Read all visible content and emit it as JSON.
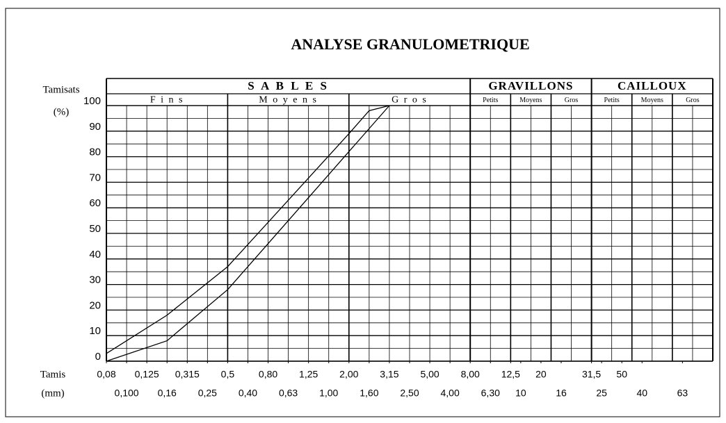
{
  "chart_data": {
    "type": "line",
    "title": "ANALYSE GRANULOMETRIQUE",
    "y_label": [
      "Tamisats",
      "(%)"
    ],
    "x_label": [
      "Tamis",
      "(mm)"
    ],
    "groups": [
      {
        "label": "S A B L E S",
        "subs": [
          "F i n s",
          "M o y e n s",
          "G r o s"
        ]
      },
      {
        "label": "GRAVILLONS",
        "subs": [
          "Petits",
          "Moyens",
          "Gros"
        ]
      },
      {
        "label": "CAILLOUX",
        "subs": [
          "Petits",
          "Moyens",
          "Gros"
        ]
      }
    ],
    "xlim": [
      0,
      30
    ],
    "ylim": [
      0,
      100
    ],
    "yticks": [
      0,
      10,
      20,
      30,
      40,
      50,
      60,
      70,
      80,
      90,
      100
    ],
    "xticks": [
      {
        "value": 0,
        "label": "0,08"
      },
      {
        "value": 2,
        "label": "0,125"
      },
      {
        "value": 4,
        "label": "0,315"
      },
      {
        "value": 6,
        "label": "0,5"
      },
      {
        "value": 8,
        "label": "0,80"
      },
      {
        "value": 10,
        "label": "1,25"
      },
      {
        "value": 12,
        "label": "2,00"
      },
      {
        "value": 14,
        "label": "3,15"
      },
      {
        "value": 16,
        "label": "5,00"
      },
      {
        "value": 18,
        "label": "8,00"
      },
      {
        "value": 20,
        "label": "12,5"
      },
      {
        "value": 21.5,
        "label": "20"
      },
      {
        "value": 24,
        "label": "31,5"
      },
      {
        "value": 25.5,
        "label": "50"
      }
    ],
    "xticks_row2": [
      {
        "value": 1,
        "label": "0,100"
      },
      {
        "value": 3,
        "label": "0,16"
      },
      {
        "value": 5,
        "label": "0,25"
      },
      {
        "value": 7,
        "label": "0,40"
      },
      {
        "value": 9,
        "label": "0,63"
      },
      {
        "value": 11,
        "label": "1,00"
      },
      {
        "value": 13,
        "label": "1,60"
      },
      {
        "value": 15,
        "label": "2,50"
      },
      {
        "value": 17,
        "label": "4,00"
      },
      {
        "value": 19,
        "label": "6,30"
      },
      {
        "value": 20.5,
        "label": "10"
      },
      {
        "value": 22.5,
        "label": "16"
      },
      {
        "value": 24.5,
        "label": "25"
      },
      {
        "value": 26.5,
        "label": "40"
      },
      {
        "value": 28.5,
        "label": "63"
      }
    ],
    "series": [
      {
        "color": "#000000",
        "x": [
          0,
          3,
          6,
          12,
          13,
          14
        ],
        "values": [
          3,
          18,
          37,
          89,
          98,
          100
        ]
      },
      {
        "color": "#000000",
        "x": [
          0,
          3,
          6,
          14
        ],
        "values": [
          0,
          8,
          28,
          100
        ]
      }
    ]
  }
}
